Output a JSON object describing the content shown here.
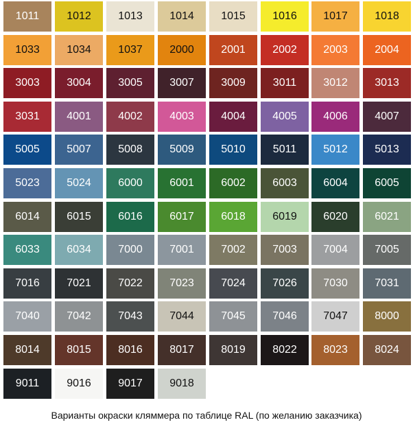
{
  "caption": "Варианты окраски кляммера по таблице RAL (по желанию заказчика)",
  "swatches": [
    {
      "code": "1011",
      "color": "#a8845c",
      "text": "#ffffff"
    },
    {
      "code": "1012",
      "color": "#dcc320",
      "text": "#111111"
    },
    {
      "code": "1013",
      "color": "#eae4d4",
      "text": "#111111"
    },
    {
      "code": "1014",
      "color": "#dcca9a",
      "text": "#111111"
    },
    {
      "code": "1015",
      "color": "#e8ddc4",
      "text": "#111111"
    },
    {
      "code": "1016",
      "color": "#f5ec2c",
      "text": "#111111"
    },
    {
      "code": "1017",
      "color": "#f5b042",
      "text": "#111111"
    },
    {
      "code": "1018",
      "color": "#f8d430",
      "text": "#111111"
    },
    {
      "code": "1033",
      "color": "#f2a036",
      "text": "#111111"
    },
    {
      "code": "1034",
      "color": "#ecaa64",
      "text": "#111111"
    },
    {
      "code": "1037",
      "color": "#ea9a1a",
      "text": "#111111"
    },
    {
      "code": "2000",
      "color": "#e2840e",
      "text": "#111111"
    },
    {
      "code": "2001",
      "color": "#c0461e",
      "text": "#ffffff"
    },
    {
      "code": "2002",
      "color": "#c42e24",
      "text": "#ffffff"
    },
    {
      "code": "2003",
      "color": "#f47a34",
      "text": "#ffffff"
    },
    {
      "code": "2004",
      "color": "#ec6420",
      "text": "#ffffff"
    },
    {
      "code": "3003",
      "color": "#8e1c24",
      "text": "#ffffff"
    },
    {
      "code": "3004",
      "color": "#7a1d2c",
      "text": "#ffffff"
    },
    {
      "code": "3005",
      "color": "#5e2030",
      "text": "#ffffff"
    },
    {
      "code": "3007",
      "color": "#40222a",
      "text": "#ffffff"
    },
    {
      "code": "3009",
      "color": "#6e2420",
      "text": "#ffffff"
    },
    {
      "code": "3011",
      "color": "#7c2020",
      "text": "#ffffff"
    },
    {
      "code": "3012",
      "color": "#c08674",
      "text": "#ffffff"
    },
    {
      "code": "3013",
      "color": "#9c2a26",
      "text": "#ffffff"
    },
    {
      "code": "3031",
      "color": "#a82a34",
      "text": "#ffffff"
    },
    {
      "code": "4001",
      "color": "#8a5a82",
      "text": "#ffffff"
    },
    {
      "code": "4002",
      "color": "#8e3a4a",
      "text": "#ffffff"
    },
    {
      "code": "4003",
      "color": "#d25898",
      "text": "#ffffff"
    },
    {
      "code": "4004",
      "color": "#6a1c3e",
      "text": "#ffffff"
    },
    {
      "code": "4005",
      "color": "#7e62a2",
      "text": "#ffffff"
    },
    {
      "code": "4006",
      "color": "#9a2a7a",
      "text": "#ffffff"
    },
    {
      "code": "4007",
      "color": "#4c2a3c",
      "text": "#ffffff"
    },
    {
      "code": "5005",
      "color": "#0c4a8a",
      "text": "#ffffff"
    },
    {
      "code": "5007",
      "color": "#3c6490",
      "text": "#ffffff"
    },
    {
      "code": "5008",
      "color": "#2c3640",
      "text": "#ffffff"
    },
    {
      "code": "5009",
      "color": "#2e5a7e",
      "text": "#ffffff"
    },
    {
      "code": "5010",
      "color": "#0e4a7e",
      "text": "#ffffff"
    },
    {
      "code": "5011",
      "color": "#1c2a3e",
      "text": "#ffffff"
    },
    {
      "code": "5012",
      "color": "#3a88c8",
      "text": "#ffffff"
    },
    {
      "code": "5013",
      "color": "#1c2c52",
      "text": "#ffffff"
    },
    {
      "code": "5023",
      "color": "#4c6c98",
      "text": "#ffffff"
    },
    {
      "code": "5024",
      "color": "#6494b4",
      "text": "#ffffff"
    },
    {
      "code": "6000",
      "color": "#2e7a5e",
      "text": "#ffffff"
    },
    {
      "code": "6001",
      "color": "#287232",
      "text": "#ffffff"
    },
    {
      "code": "6002",
      "color": "#2c6a26",
      "text": "#ffffff"
    },
    {
      "code": "6003",
      "color": "#4a5438",
      "text": "#ffffff"
    },
    {
      "code": "6004",
      "color": "#0e4440",
      "text": "#ffffff"
    },
    {
      "code": "6005",
      "color": "#0e4434",
      "text": "#ffffff"
    },
    {
      "code": "6014",
      "color": "#5a5a48",
      "text": "#ffffff"
    },
    {
      "code": "6015",
      "color": "#3a3e36",
      "text": "#ffffff"
    },
    {
      "code": "6016",
      "color": "#1c6a4a",
      "text": "#ffffff"
    },
    {
      "code": "6017",
      "color": "#4a8a2e",
      "text": "#ffffff"
    },
    {
      "code": "6018",
      "color": "#5aa634",
      "text": "#ffffff"
    },
    {
      "code": "6019",
      "color": "#b4d6ac",
      "text": "#111111"
    },
    {
      "code": "6020",
      "color": "#2a3e2c",
      "text": "#ffffff"
    },
    {
      "code": "6021",
      "color": "#8aa482",
      "text": "#ffffff"
    },
    {
      "code": "6033",
      "color": "#3a8a7e",
      "text": "#ffffff"
    },
    {
      "code": "6034",
      "color": "#7eaab0",
      "text": "#ffffff"
    },
    {
      "code": "7000",
      "color": "#7a8892",
      "text": "#ffffff"
    },
    {
      "code": "7001",
      "color": "#8c969e",
      "text": "#ffffff"
    },
    {
      "code": "7002",
      "color": "#7e7a64",
      "text": "#ffffff"
    },
    {
      "code": "7003",
      "color": "#7a7462",
      "text": "#ffffff"
    },
    {
      "code": "7004",
      "color": "#9c9ea0",
      "text": "#ffffff"
    },
    {
      "code": "7005",
      "color": "#666a68",
      "text": "#ffffff"
    },
    {
      "code": "7016",
      "color": "#383e42",
      "text": "#ffffff"
    },
    {
      "code": "7021",
      "color": "#2e3234",
      "text": "#ffffff"
    },
    {
      "code": "7022",
      "color": "#4a4a46",
      "text": "#ffffff"
    },
    {
      "code": "7023",
      "color": "#808478",
      "text": "#ffffff"
    },
    {
      "code": "7024",
      "color": "#474a50",
      "text": "#ffffff"
    },
    {
      "code": "7026",
      "color": "#3a4648",
      "text": "#ffffff"
    },
    {
      "code": "7030",
      "color": "#8e8c84",
      "text": "#ffffff"
    },
    {
      "code": "7031",
      "color": "#5e6a72",
      "text": "#ffffff"
    },
    {
      "code": "7040",
      "color": "#9aa0a6",
      "text": "#ffffff"
    },
    {
      "code": "7042",
      "color": "#8e9294",
      "text": "#ffffff"
    },
    {
      "code": "7043",
      "color": "#4c5050",
      "text": "#ffffff"
    },
    {
      "code": "7044",
      "color": "#c8c4b6",
      "text": "#111111"
    },
    {
      "code": "7045",
      "color": "#8e9296",
      "text": "#ffffff"
    },
    {
      "code": "7046",
      "color": "#7c8288",
      "text": "#ffffff"
    },
    {
      "code": "7047",
      "color": "#cfcfcf",
      "text": "#111111"
    },
    {
      "code": "8000",
      "color": "#88703e",
      "text": "#ffffff"
    },
    {
      "code": "8014",
      "color": "#4e3a2a",
      "text": "#ffffff"
    },
    {
      "code": "8015",
      "color": "#64352a",
      "text": "#ffffff"
    },
    {
      "code": "8016",
      "color": "#4c2e22",
      "text": "#ffffff"
    },
    {
      "code": "8017",
      "color": "#44302a",
      "text": "#ffffff"
    },
    {
      "code": "8019",
      "color": "#3e3634",
      "text": "#ffffff"
    },
    {
      "code": "8022",
      "color": "#1c1718",
      "text": "#ffffff"
    },
    {
      "code": "8023",
      "color": "#a4602e",
      "text": "#ffffff"
    },
    {
      "code": "8024",
      "color": "#78553e",
      "text": "#ffffff"
    },
    {
      "code": "9011",
      "color": "#1c2024",
      "text": "#ffffff"
    },
    {
      "code": "9016",
      "color": "#f6f6f4",
      "text": "#111111"
    },
    {
      "code": "9017",
      "color": "#1e1e1e",
      "text": "#ffffff"
    },
    {
      "code": "9018",
      "color": "#cfd3cd",
      "text": "#111111"
    }
  ]
}
